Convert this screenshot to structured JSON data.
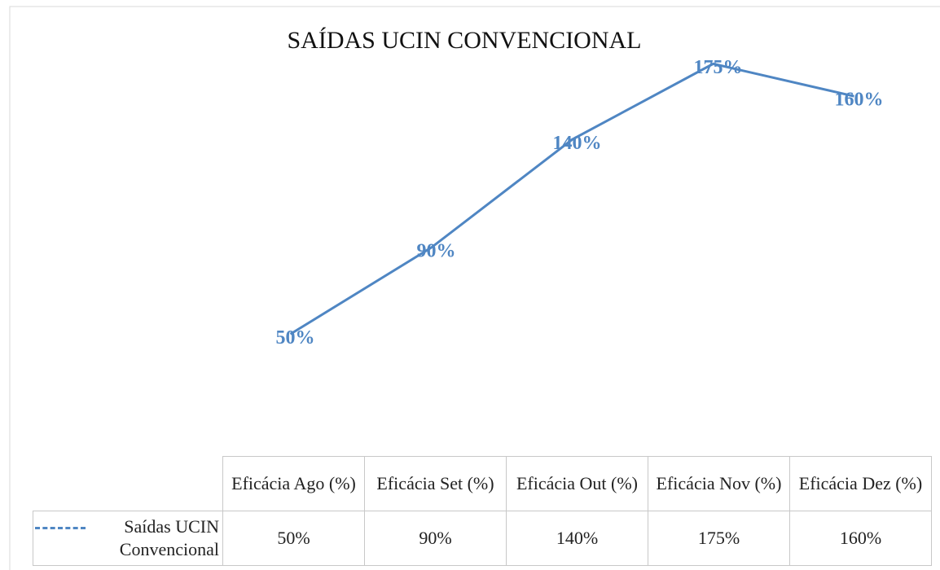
{
  "chart_data": {
    "type": "line",
    "title": "SAÍDAS UCIN CONVENCIONAL",
    "categories": [
      "Eficácia Ago (%)",
      "Eficácia Set (%)",
      "Eficácia Out (%)",
      "Eficácia Nov (%)",
      "Eficácia Dez (%)"
    ],
    "series": [
      {
        "name": "Saídas UCIN Convencional",
        "color": "#4f86c3",
        "values": [
          50,
          90,
          140,
          175,
          160
        ],
        "value_labels": [
          "50%",
          "90%",
          "140%",
          "175%",
          "160%"
        ]
      }
    ],
    "ylim": [
      0,
      200
    ],
    "legend": "table"
  }
}
